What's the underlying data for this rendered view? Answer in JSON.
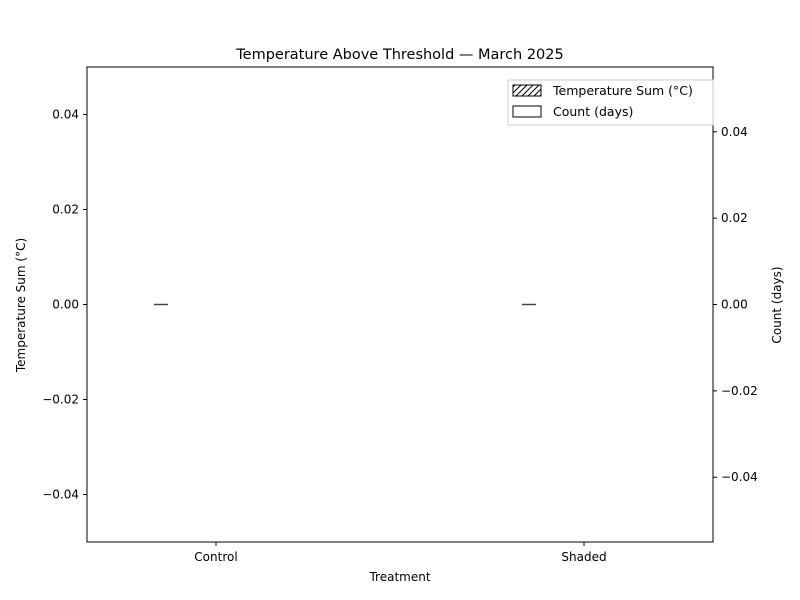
{
  "chart_data": {
    "type": "bar",
    "title": "Temperature Above Threshold — March 2025",
    "xlabel": "Treatment",
    "ylabel_left": "Temperature Sum (°C)",
    "ylabel_right": "Count (days)",
    "categories": [
      "Control",
      "Shaded"
    ],
    "series": [
      {
        "name": "Temperature Sum (°C)",
        "axis": "left",
        "pattern": "hatched",
        "values": [
          0,
          0
        ]
      },
      {
        "name": "Count (days)",
        "axis": "right",
        "pattern": "solid",
        "values": [
          0,
          0
        ]
      }
    ],
    "left_axis": {
      "ylim": [
        -0.05,
        0.05
      ],
      "ticks": [
        -0.04,
        -0.02,
        0.0,
        0.02,
        0.04
      ],
      "tick_labels": [
        "−0.04",
        "−0.02",
        "0.00",
        "0.02",
        "0.04"
      ]
    },
    "right_axis": {
      "ylim": [
        -0.055,
        0.055
      ],
      "ticks": [
        -0.04,
        -0.02,
        0.0,
        0.02,
        0.04
      ],
      "tick_labels": [
        "−0.04",
        "−0.02",
        "0.00",
        "0.02",
        "0.04"
      ]
    },
    "legend_position": "top-right",
    "grid": false,
    "colors": {
      "edge": "#000000",
      "fill": "#ffffff",
      "background": "#ffffff"
    }
  }
}
